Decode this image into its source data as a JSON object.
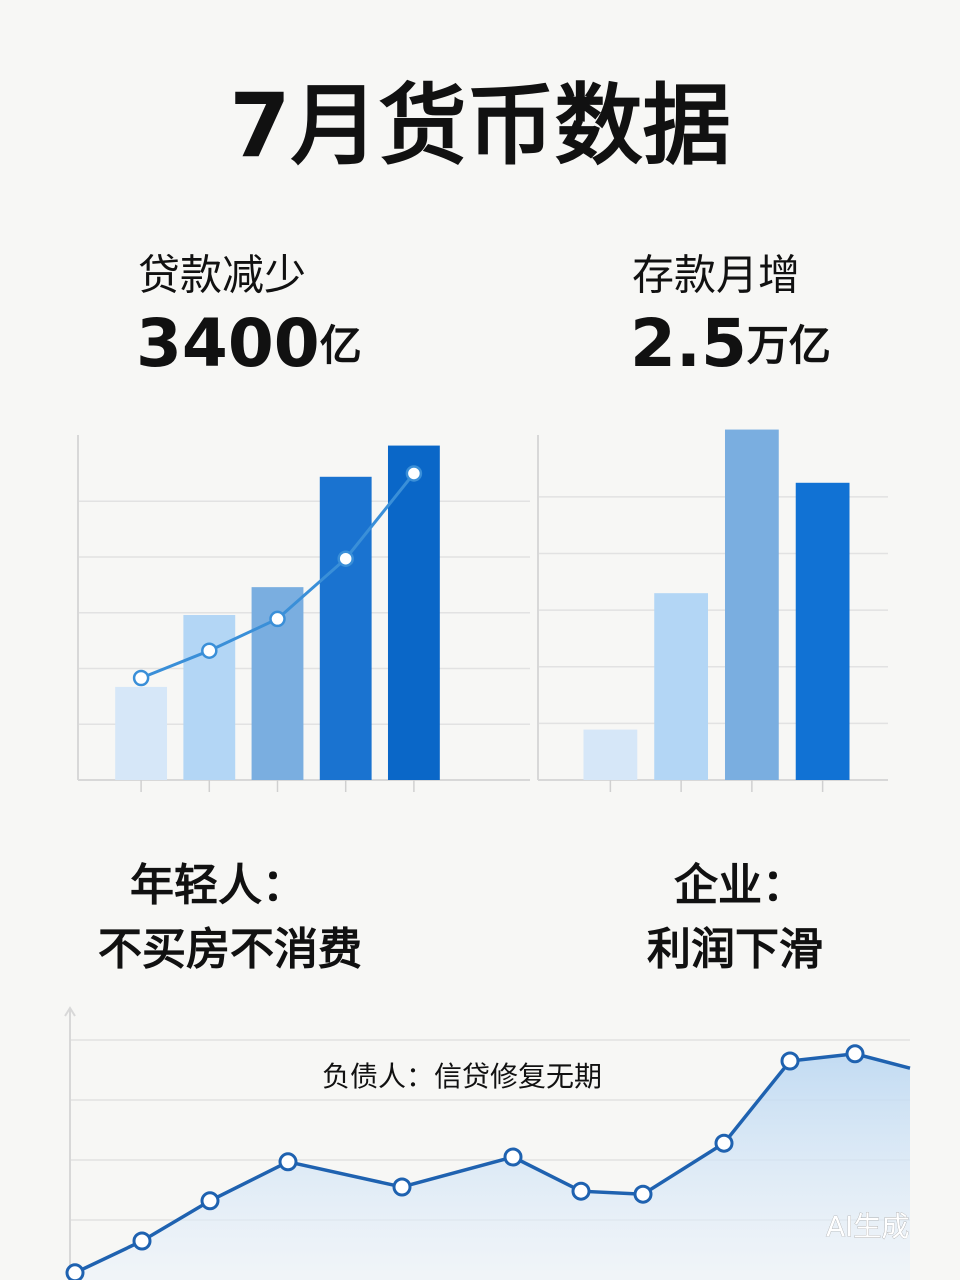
{
  "header": {
    "title": "7月货币数据"
  },
  "panels": [
    {
      "label": "贷款减少",
      "amount": "3400",
      "unit": "亿"
    },
    {
      "label": "存款月增",
      "amount": "2.5",
      "unit": "万亿"
    }
  ],
  "captions": [
    {
      "line1": "年轻人：",
      "line2": "不买房不消费"
    },
    {
      "line1": "企业：",
      "line2": "利润下滑"
    }
  ],
  "note": "负债人：信贷修复无期",
  "watermark": "AI生成",
  "chart_data": [
    {
      "type": "bar",
      "categories": [
        null,
        null,
        null,
        null,
        null
      ],
      "series": [
        {
          "type": "bar",
          "colors": [
            "#d6e7f8",
            "#b3d6f5",
            "#7aaee0",
            "#1a73d0",
            "#0a67c8"
          ],
          "values": [
            1.67,
            2.96,
            3.46,
            5.44,
            6.0
          ]
        },
        {
          "type": "line",
          "color": "#3a8fd8",
          "values": [
            1.83,
            2.32,
            2.89,
            3.97,
            5.5
          ]
        }
      ],
      "ylim": [
        0,
        6.1
      ],
      "yticks": [
        1,
        2,
        3,
        4,
        5
      ],
      "grid": true
    },
    {
      "type": "bar",
      "categories": [
        null,
        null,
        null,
        null
      ],
      "series": [
        {
          "type": "bar",
          "colors": [
            "#d6e7f8",
            "#b3d6f5",
            "#7aaee0",
            "#1172d4"
          ],
          "values": [
            0.89,
            3.3,
            6.19,
            5.25
          ]
        }
      ],
      "ylim": [
        0,
        6.2
      ],
      "yticks": [
        1,
        2,
        3,
        4,
        5
      ],
      "grid": true
    },
    {
      "type": "area",
      "x": [
        7,
        74,
        142,
        220,
        334,
        445,
        513,
        575,
        656,
        722,
        787,
        842
      ],
      "xlim": [
        0,
        842
      ],
      "values": [
        0.12,
        0.65,
        1.32,
        1.97,
        1.55,
        2.05,
        1.48,
        1.43,
        2.28,
        3.65,
        3.77,
        3.53
      ],
      "color": "#1f62b0",
      "ylim": [
        0,
        4.2
      ],
      "yticks": [
        1,
        2,
        3,
        4
      ],
      "grid": true
    }
  ]
}
